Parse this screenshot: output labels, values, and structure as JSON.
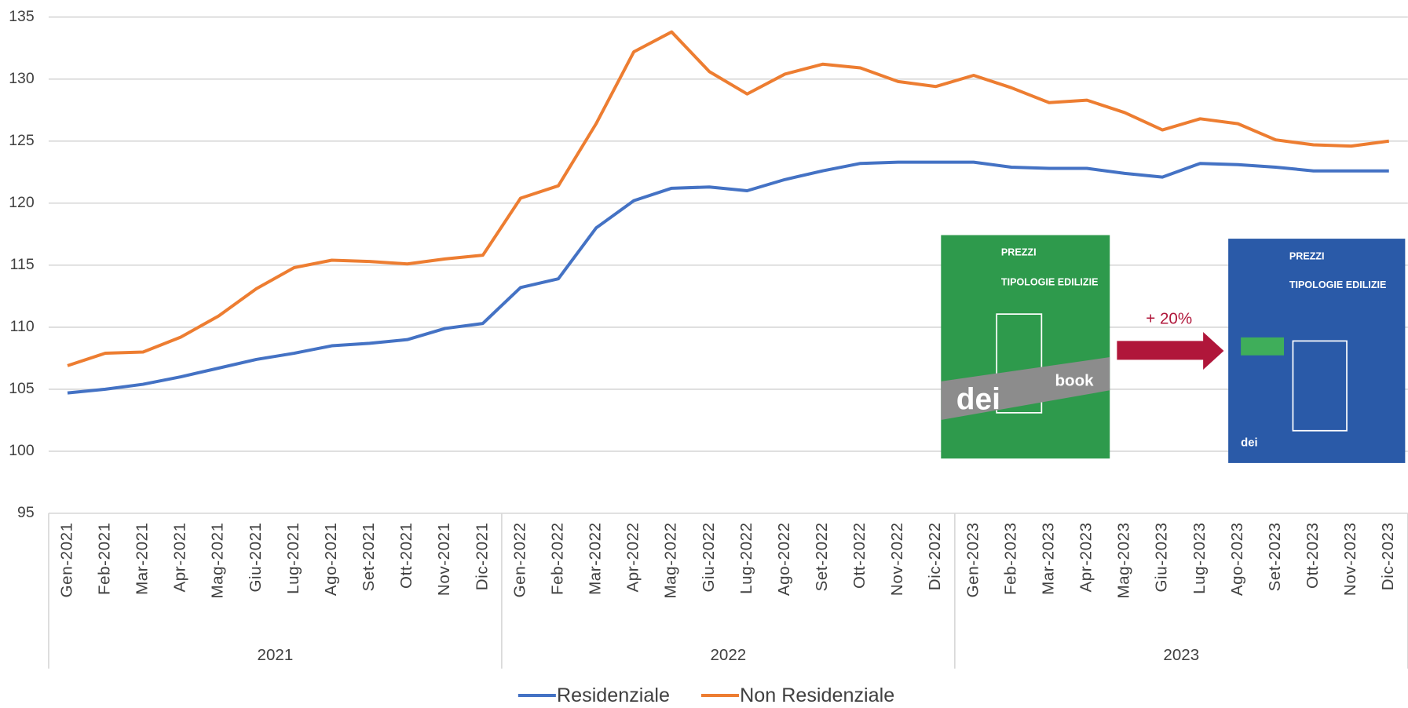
{
  "chart_data": {
    "type": "line",
    "categories": [
      "Gen-2021",
      "Feb-2021",
      "Mar-2021",
      "Apr-2021",
      "Mag-2021",
      "Giu-2021",
      "Lug-2021",
      "Ago-2021",
      "Set-2021",
      "Ott-2021",
      "Nov-2021",
      "Dic-2021",
      "Gen-2022",
      "Feb-2022",
      "Mar-2022",
      "Apr-2022",
      "Mag-2022",
      "Giu-2022",
      "Lug-2022",
      "Ago-2022",
      "Set-2022",
      "Ott-2022",
      "Nov-2022",
      "Dic-2022",
      "Gen-2023",
      "Feb-2023",
      "Mar-2023",
      "Apr-2023",
      "Mag-2023",
      "Giu-2023",
      "Lug-2023",
      "Ago-2023",
      "Set-2023",
      "Ott-2023",
      "Nov-2023",
      "Dic-2023"
    ],
    "x_groups": [
      "2021",
      "2022",
      "2023"
    ],
    "series": [
      {
        "name": "Residenziale",
        "color": "#4472c4",
        "values": [
          104.7,
          105.0,
          105.4,
          106.0,
          106.7,
          107.4,
          107.9,
          108.5,
          108.7,
          109.0,
          109.9,
          110.3,
          113.2,
          113.9,
          118.0,
          120.2,
          121.2,
          121.3,
          121.0,
          121.9,
          122.6,
          123.2,
          123.3,
          123.3,
          123.3,
          122.9,
          122.8,
          122.8,
          122.4,
          122.1,
          123.2,
          123.1,
          122.9,
          122.6,
          122.6,
          122.6
        ]
      },
      {
        "name": "Non Residenziale",
        "color": "#ed7d31",
        "values": [
          106.9,
          107.9,
          108.0,
          109.2,
          110.9,
          113.1,
          114.8,
          115.4,
          115.3,
          115.1,
          115.5,
          115.8,
          120.4,
          121.4,
          126.4,
          132.2,
          133.8,
          130.6,
          128.8,
          130.4,
          131.2,
          130.9,
          129.8,
          129.4,
          130.3,
          129.3,
          128.1,
          128.3,
          127.3,
          125.9,
          126.8,
          126.4,
          125.1,
          124.7,
          124.6,
          125.0
        ]
      }
    ],
    "ylim": [
      95,
      135
    ],
    "yticks": [
      95,
      100,
      105,
      110,
      115,
      120,
      125,
      130,
      135
    ],
    "grid": true,
    "legend": "bottom",
    "inset": {
      "label": "+ 20%",
      "covers": [
        {
          "header": "PREZZI",
          "title": "TIPOLOGIE EDILIZIE",
          "brand": "dei",
          "badge": "book"
        },
        {
          "header": "PREZZI",
          "title": "TIPOLOGIE EDILIZIE",
          "brand": "dei"
        }
      ]
    }
  }
}
